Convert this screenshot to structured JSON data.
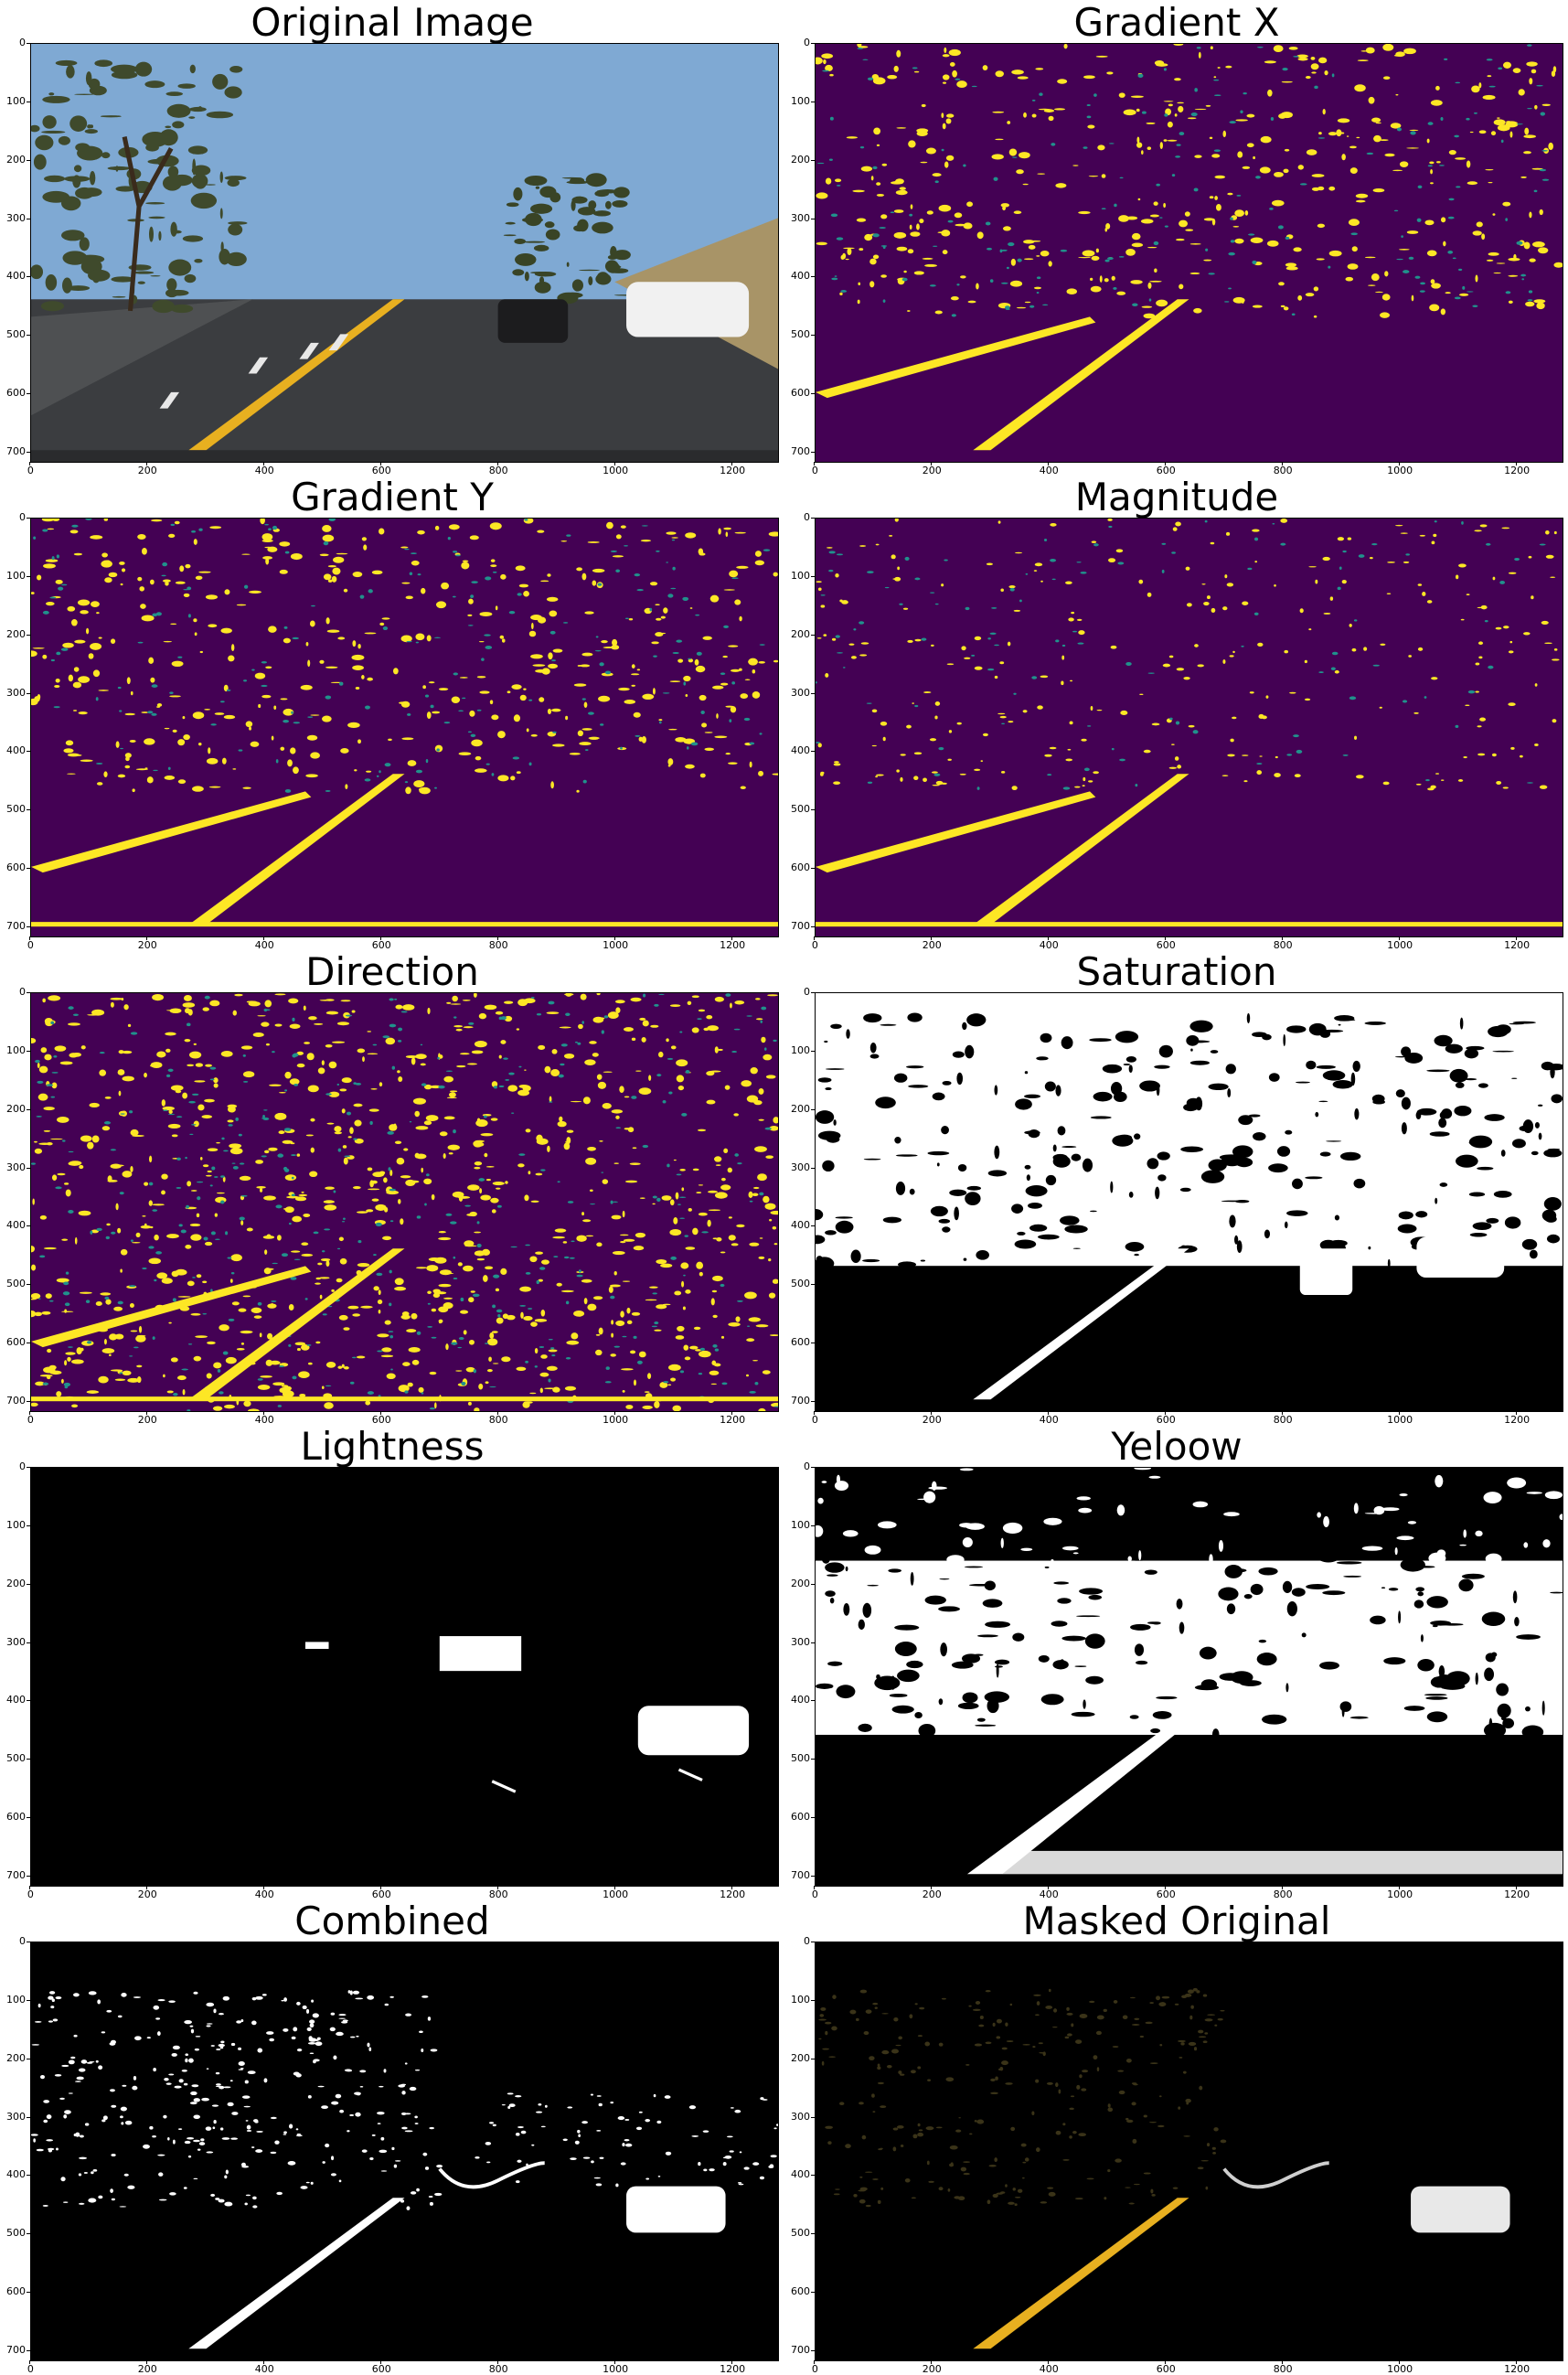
{
  "figure": {
    "panels": [
      {
        "id": "original",
        "title": "Original Image",
        "style": "photo"
      },
      {
        "id": "gradx",
        "title": "Gradient X",
        "style": "viridis"
      },
      {
        "id": "grady",
        "title": "Gradient Y",
        "style": "viridis"
      },
      {
        "id": "magnitude",
        "title": "Magnitude",
        "style": "viridis"
      },
      {
        "id": "direction",
        "title": "Direction",
        "style": "viridis"
      },
      {
        "id": "saturation",
        "title": "Saturation",
        "style": "binary"
      },
      {
        "id": "lightness",
        "title": "Lightness",
        "style": "binary"
      },
      {
        "id": "yellow",
        "title": "Yeloow",
        "style": "binary"
      },
      {
        "id": "combined",
        "title": "Combined",
        "style": "binary"
      },
      {
        "id": "masked",
        "title": "Masked Original",
        "style": "masked"
      }
    ],
    "x_ticks": [
      "0",
      "200",
      "400",
      "600",
      "800",
      "1000",
      "1200"
    ],
    "y_ticks": [
      "0",
      "100",
      "200",
      "300",
      "400",
      "500",
      "600",
      "700"
    ],
    "colors": {
      "viridis_dark": "#440154",
      "viridis_bright": "#fde725",
      "viridis_mid": "#21918c",
      "binary_on": "#ffffff",
      "binary_off": "#000000",
      "sky": "#7fa9d3",
      "road": "#3b3d40",
      "lane_yellow": "#e8b020",
      "foliage": "#3f4a2c"
    }
  }
}
